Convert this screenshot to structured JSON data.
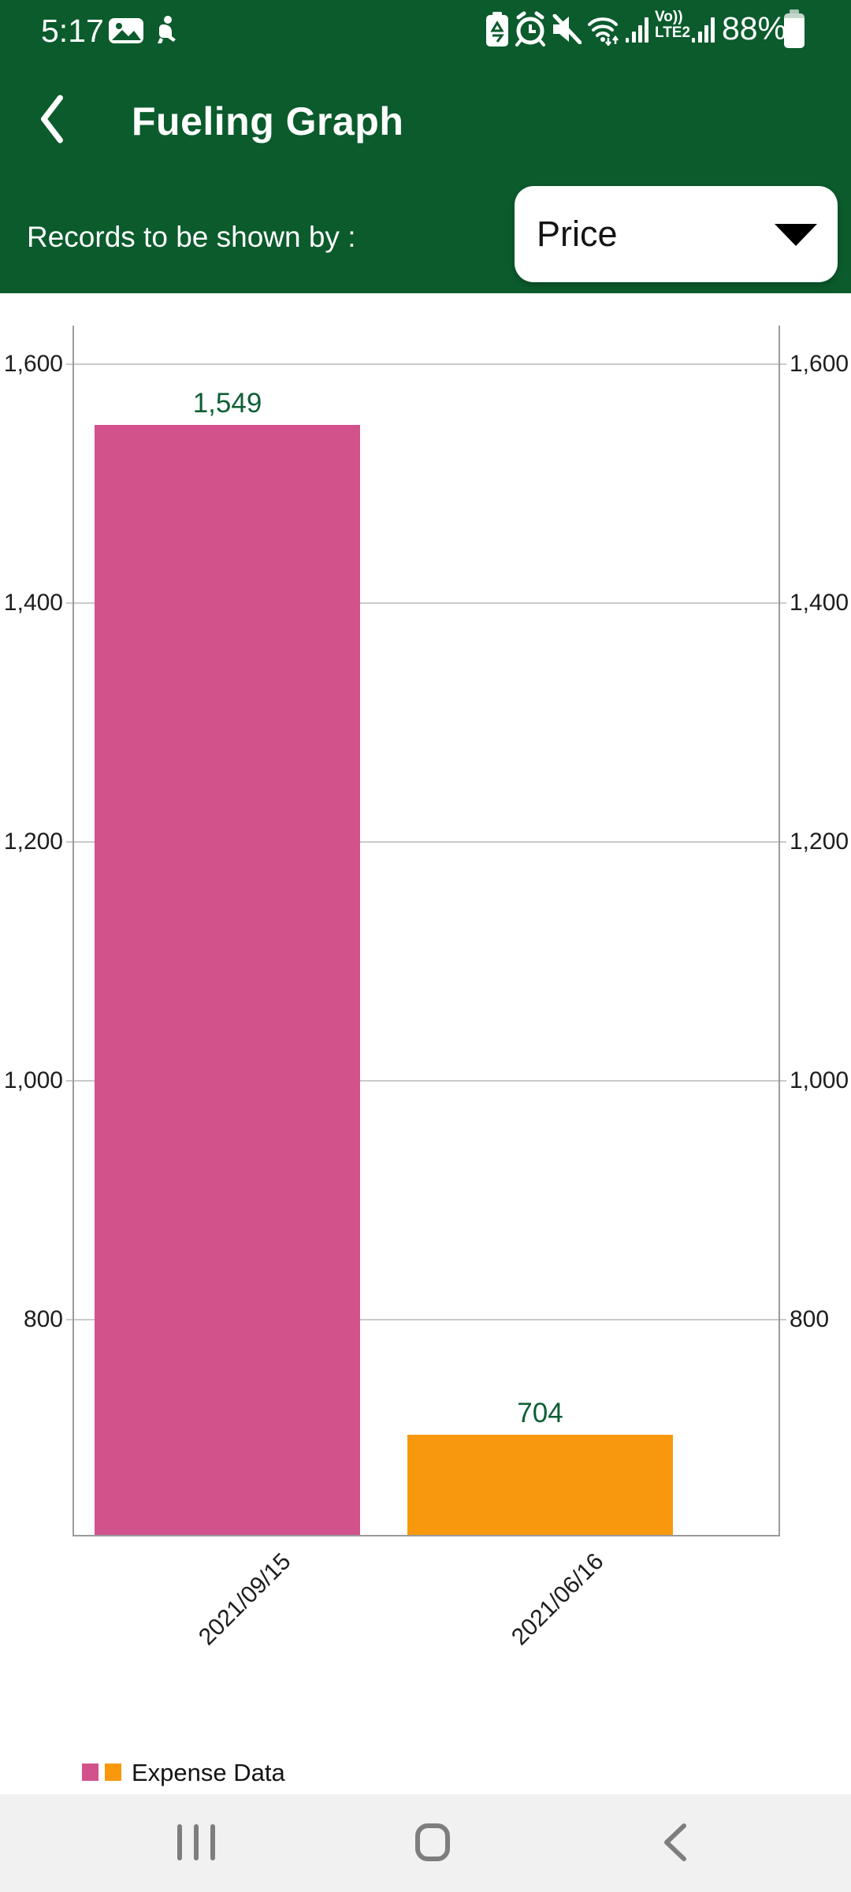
{
  "status_bar": {
    "time": "5:17",
    "battery_percent": "88%",
    "volte_line1": "Vo))",
    "volte_line2": "LTE2",
    "left_icons": [
      "gallery-icon",
      "person-icon"
    ],
    "right_icons": [
      "battery-recycle-icon",
      "alarm-icon",
      "mute-icon",
      "wifi-icon",
      "signal-icon",
      "volte-indicator",
      "signal-icon",
      "battery-icon"
    ]
  },
  "header": {
    "back_icon": "chevron-left-icon",
    "title": "Fueling Graph",
    "records_label": "Records to be shown by :",
    "dropdown_value": "Price",
    "background_color": "#0B5B2C"
  },
  "chart_data": {
    "type": "bar",
    "title": "",
    "categories": [
      "2021/09/15",
      "2021/06/16"
    ],
    "series": [
      {
        "name": "Expense Data",
        "values": [
          1549,
          704
        ]
      }
    ],
    "value_labels": [
      "1,549",
      "704"
    ],
    "bar_colors": [
      "#D2528C",
      "#F8980C"
    ],
    "ylim": [
      620,
      1632
    ],
    "yticks": [
      800,
      1000,
      1200,
      1400,
      1600
    ],
    "ytick_labels": [
      "800",
      "1,000",
      "1,200",
      "1,400",
      "1,600"
    ],
    "grid": true,
    "value_label_color": "#0E5F35",
    "legend": {
      "label": "Expense Data",
      "colors": [
        "#D2528C",
        "#F8980C"
      ],
      "position": "bottom-left"
    }
  },
  "nav_bar": {
    "icons": [
      "recents-icon",
      "home-icon",
      "back-icon"
    ]
  }
}
